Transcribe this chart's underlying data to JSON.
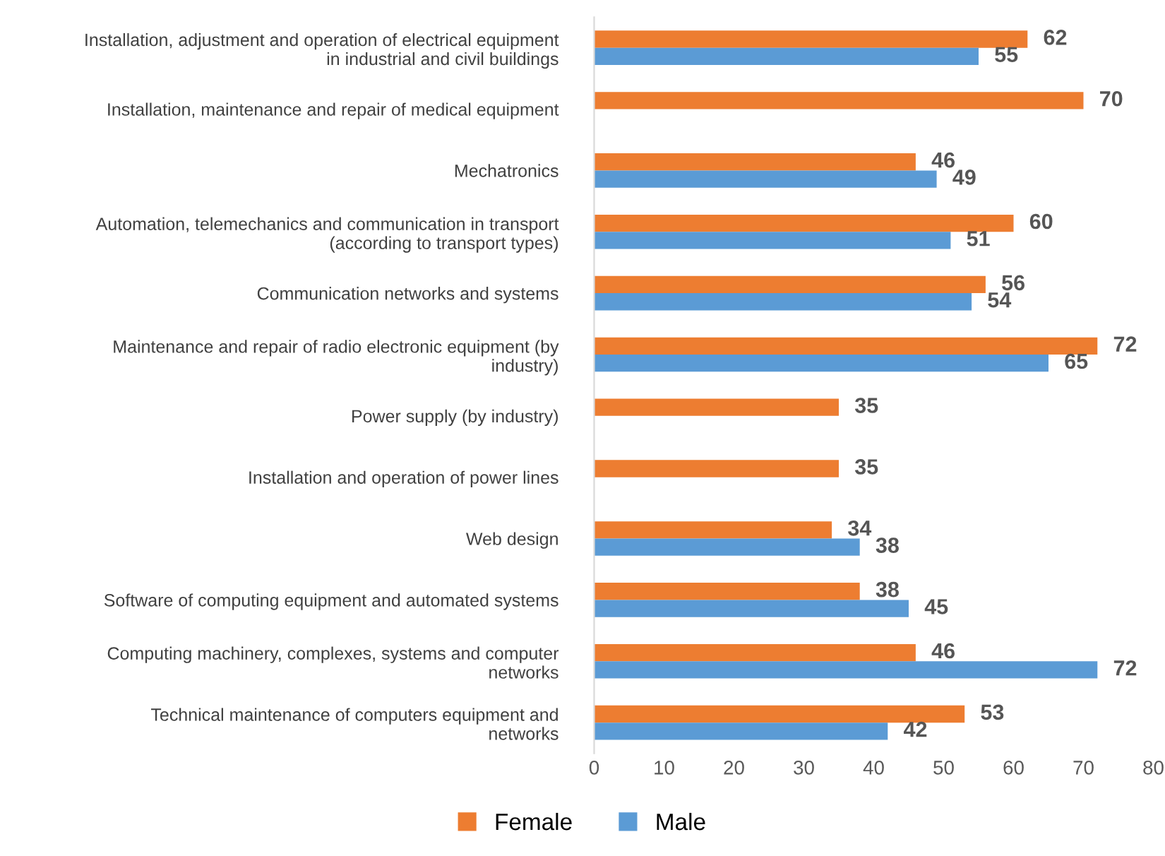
{
  "chart_data": {
    "type": "bar",
    "orientation": "horizontal",
    "categories": [
      "Installation, adjustment and operation of electrical equipment\nin industrial and civil buildings",
      "Installation, maintenance and repair of medical equipment",
      "Mechatronics",
      "Automation, telemechanics and communication in transport\n(according to transport types)",
      "Communication networks and systems",
      "Maintenance and repair of radio electronic equipment (by\nindustry)",
      "Power supply (by industry)",
      "Installation and operation of power lines",
      "Web design",
      "Software of computing equipment and automated systems",
      "Computing machinery, complexes, systems and computer\nnetworks",
      "Technical maintenance of computers equipment and\nnetworks"
    ],
    "series": [
      {
        "name": "Female",
        "color": "#ed7d31",
        "values": [
          62,
          70,
          46,
          60,
          56,
          72,
          35,
          35,
          34,
          38,
          46,
          53
        ]
      },
      {
        "name": "Male",
        "color": "#5b9bd5",
        "values": [
          55,
          null,
          49,
          51,
          54,
          65,
          null,
          null,
          38,
          45,
          72,
          42
        ]
      }
    ],
    "xlim": [
      0,
      80
    ],
    "xticks": [
      0,
      10,
      20,
      30,
      40,
      50,
      60,
      70,
      80
    ],
    "data_labels": true,
    "legend": "bottom",
    "grid": false
  }
}
